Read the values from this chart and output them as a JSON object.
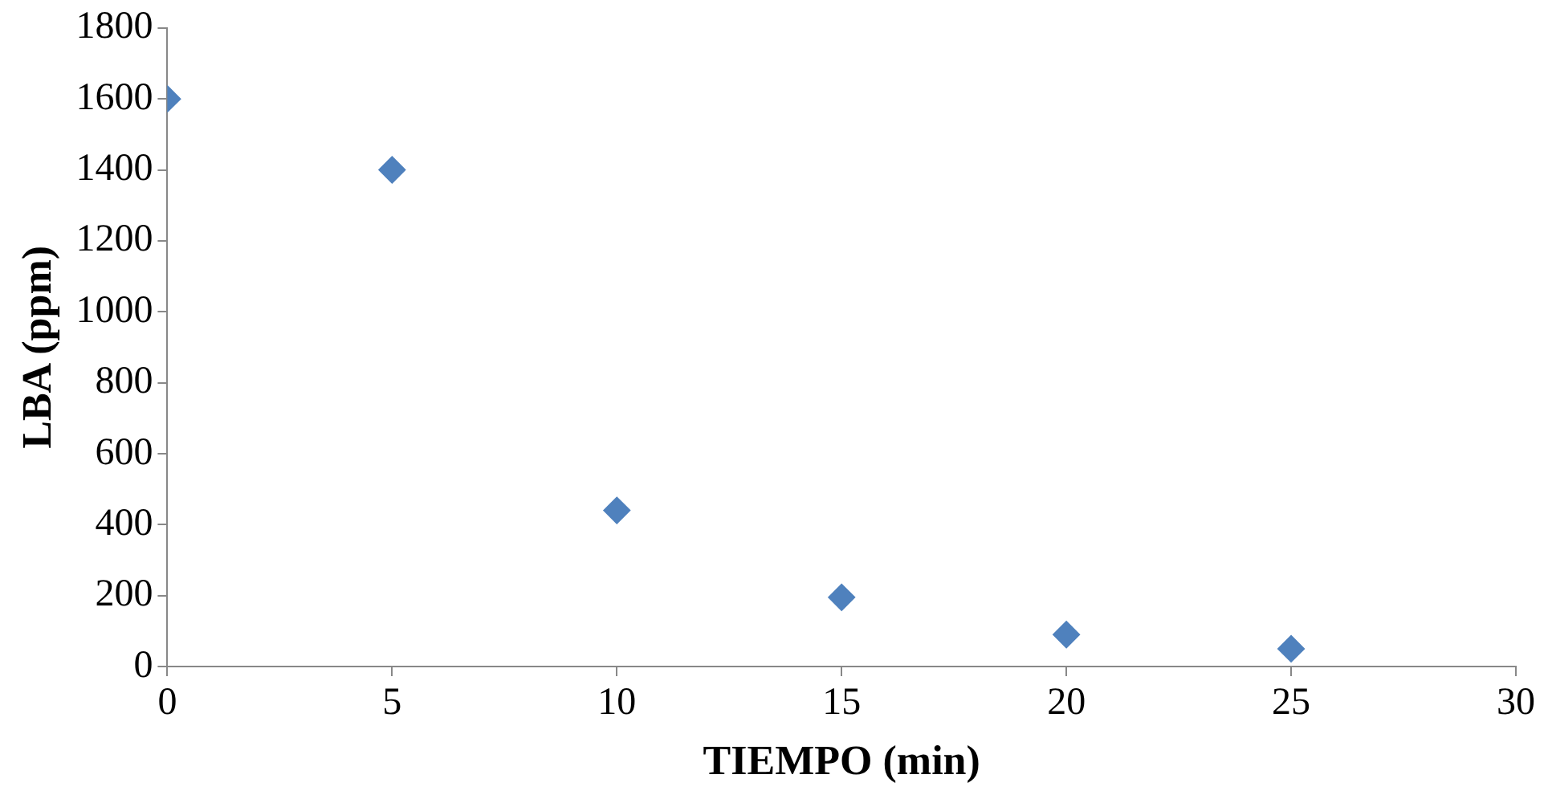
{
  "chart_data": {
    "type": "scatter",
    "xlabel": "TIEMPO (min)",
    "ylabel": "LBA (ppm)",
    "x": [
      0,
      5,
      10,
      15,
      20,
      25
    ],
    "series": [
      {
        "color": "#4f81bd",
        "values": [
          1600,
          1400,
          440,
          195,
          90,
          50
        ]
      }
    ],
    "xlim": [
      0,
      30
    ],
    "xticks": [
      0,
      5,
      10,
      15,
      20,
      25,
      30
    ],
    "ylim": [
      0,
      1800
    ],
    "yticks": [
      0,
      200,
      400,
      600,
      800,
      1000,
      1200,
      1400,
      1600,
      1800
    ],
    "marker": "diamond",
    "grid": false,
    "legend": false
  }
}
